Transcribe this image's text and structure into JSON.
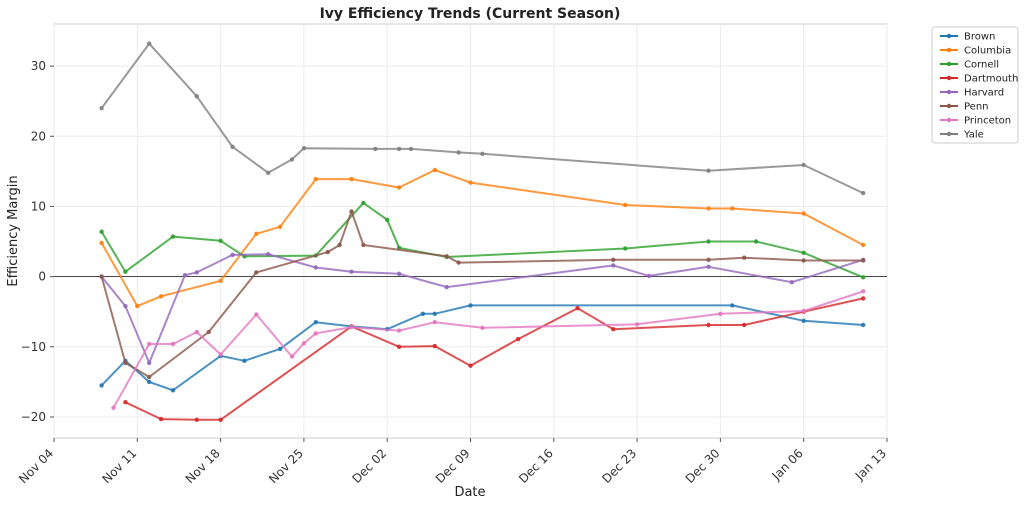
{
  "chart_data": {
    "type": "line",
    "title": "Ivy Efficiency Trends (Current Season)",
    "xlabel": "Date",
    "ylabel": "Efficiency Margin",
    "x_axis": "date",
    "xlim": [
      "2024-11-04",
      "2025-01-13"
    ],
    "ylim": [
      -23,
      36
    ],
    "x_ticks": [
      "2024-11-04",
      "2024-11-11",
      "2024-11-18",
      "2024-11-25",
      "2024-12-02",
      "2024-12-09",
      "2024-12-16",
      "2024-12-23",
      "2024-12-30",
      "2025-01-06",
      "2025-01-13"
    ],
    "x_tick_labels": [
      "Nov 04",
      "Nov 11",
      "Nov 18",
      "Nov 25",
      "Dec 02",
      "Dec 09",
      "Dec 16",
      "Dec 23",
      "Dec 30",
      "Jan 06",
      "Jan 13"
    ],
    "y_ticks": [
      -20,
      -10,
      0,
      10,
      20,
      30
    ],
    "y_tick_labels": [
      "−20",
      "−10",
      "0",
      "10",
      "20",
      "30"
    ],
    "grid": true,
    "zero_line": true,
    "legend_position": "outside top-right",
    "series": [
      {
        "name": "Brown",
        "color": "#1f77b4",
        "points": [
          [
            "2024-11-08",
            -15.5
          ],
          [
            "2024-11-10",
            -12
          ],
          [
            "2024-11-12",
            -15
          ],
          [
            "2024-11-14",
            -16.2
          ],
          [
            "2024-11-18",
            -11.3
          ],
          [
            "2024-11-20",
            -12
          ],
          [
            "2024-11-23",
            -10.3
          ],
          [
            "2024-11-26",
            -6.5
          ],
          [
            "2024-11-29",
            -7.1
          ],
          [
            "2024-12-02",
            -7.5
          ],
          [
            "2024-12-05",
            -5.3
          ],
          [
            "2024-12-06",
            -5.3
          ],
          [
            "2024-12-09",
            -4.1
          ],
          [
            "2024-12-31",
            -4.1
          ],
          [
            "2025-01-06",
            -6.3
          ],
          [
            "2025-01-11",
            -6.9
          ]
        ]
      },
      {
        "name": "Columbia",
        "color": "#ff7f0e",
        "points": [
          [
            "2024-11-08",
            4.8
          ],
          [
            "2024-11-11",
            -4.2
          ],
          [
            "2024-11-13",
            -2.8
          ],
          [
            "2024-11-18",
            -0.6
          ],
          [
            "2024-11-21",
            6.1
          ],
          [
            "2024-11-23",
            7.1
          ],
          [
            "2024-11-26",
            13.9
          ],
          [
            "2024-11-29",
            13.9
          ],
          [
            "2024-12-03",
            12.7
          ],
          [
            "2024-12-06",
            15.2
          ],
          [
            "2024-12-09",
            13.4
          ],
          [
            "2024-12-22",
            10.2
          ],
          [
            "2024-12-29",
            9.7
          ],
          [
            "2024-12-31",
            9.7
          ],
          [
            "2025-01-06",
            9.0
          ],
          [
            "2025-01-11",
            4.5
          ]
        ]
      },
      {
        "name": "Cornell",
        "color": "#2ca02c",
        "points": [
          [
            "2024-11-08",
            6.4
          ],
          [
            "2024-11-10",
            0.7
          ],
          [
            "2024-11-14",
            5.7
          ],
          [
            "2024-11-18",
            5.1
          ],
          [
            "2024-11-20",
            2.9
          ],
          [
            "2024-11-26",
            3.0
          ],
          [
            "2024-11-30",
            10.5
          ],
          [
            "2024-12-02",
            8.1
          ],
          [
            "2024-12-03",
            4.1
          ],
          [
            "2024-12-07",
            2.8
          ],
          [
            "2024-12-22",
            4.0
          ],
          [
            "2024-12-29",
            5.0
          ],
          [
            "2025-01-02",
            5.0
          ],
          [
            "2025-01-06",
            3.4
          ],
          [
            "2025-01-11",
            -0.1
          ]
        ]
      },
      {
        "name": "Dartmouth",
        "color": "#d62728",
        "points": [
          [
            "2024-11-10",
            -17.9
          ],
          [
            "2024-11-13",
            -20.3
          ],
          [
            "2024-11-16",
            -20.4
          ],
          [
            "2024-11-18",
            -20.4
          ],
          [
            "2024-11-29",
            -7.1
          ],
          [
            "2024-12-03",
            -10.0
          ],
          [
            "2024-12-06",
            -9.9
          ],
          [
            "2024-12-09",
            -12.7
          ],
          [
            "2024-12-13",
            -8.9
          ],
          [
            "2024-12-18",
            -4.5
          ],
          [
            "2024-12-21",
            -7.5
          ],
          [
            "2024-12-29",
            -6.9
          ],
          [
            "2025-01-01",
            -6.9
          ],
          [
            "2025-01-06",
            -5.0
          ],
          [
            "2025-01-11",
            -3.1
          ]
        ]
      },
      {
        "name": "Harvard",
        "color": "#9467bd",
        "points": [
          [
            "2024-11-08",
            0.0
          ],
          [
            "2024-11-10",
            -4.2
          ],
          [
            "2024-11-12",
            -12.3
          ],
          [
            "2024-11-15",
            0.2
          ],
          [
            "2024-11-16",
            0.6
          ],
          [
            "2024-11-19",
            3.1
          ],
          [
            "2024-11-22",
            3.2
          ],
          [
            "2024-11-26",
            1.3
          ],
          [
            "2024-11-29",
            0.7
          ],
          [
            "2024-12-03",
            0.4
          ],
          [
            "2024-12-07",
            -1.5
          ],
          [
            "2024-12-21",
            1.6
          ],
          [
            "2024-12-24",
            0.1
          ],
          [
            "2024-12-29",
            1.4
          ],
          [
            "2025-01-05",
            -0.8
          ],
          [
            "2025-01-11",
            2.4
          ]
        ]
      },
      {
        "name": "Penn",
        "color": "#8c564b",
        "points": [
          [
            "2024-11-08",
            0.0
          ],
          [
            "2024-11-10",
            -12.3
          ],
          [
            "2024-11-12",
            -14.3
          ],
          [
            "2024-11-17",
            -7.9
          ],
          [
            "2024-11-21",
            0.6
          ],
          [
            "2024-11-27",
            3.5
          ],
          [
            "2024-11-28",
            4.5
          ],
          [
            "2024-11-29",
            9.3
          ],
          [
            "2024-11-30",
            4.5
          ],
          [
            "2024-12-07",
            2.9
          ],
          [
            "2024-12-08",
            2.0
          ],
          [
            "2024-12-21",
            2.4
          ],
          [
            "2024-12-29",
            2.4
          ],
          [
            "2025-01-01",
            2.7
          ],
          [
            "2025-01-06",
            2.3
          ],
          [
            "2025-01-11",
            2.3
          ]
        ]
      },
      {
        "name": "Princeton",
        "color": "#e377c2",
        "points": [
          [
            "2024-11-09",
            -18.7
          ],
          [
            "2024-11-12",
            -9.6
          ],
          [
            "2024-11-14",
            -9.6
          ],
          [
            "2024-11-16",
            -7.9
          ],
          [
            "2024-11-18",
            -11.1
          ],
          [
            "2024-11-21",
            -5.4
          ],
          [
            "2024-11-24",
            -11.4
          ],
          [
            "2024-11-25",
            -9.5
          ],
          [
            "2024-11-26",
            -8.1
          ],
          [
            "2024-11-29",
            -7.2
          ],
          [
            "2024-12-03",
            -7.7
          ],
          [
            "2024-12-06",
            -6.5
          ],
          [
            "2024-12-10",
            -7.3
          ],
          [
            "2024-12-23",
            -6.8
          ],
          [
            "2024-12-30",
            -5.3
          ],
          [
            "2025-01-06",
            -4.9
          ],
          [
            "2025-01-11",
            -2.1
          ]
        ]
      },
      {
        "name": "Yale",
        "color": "#7f7f7f",
        "points": [
          [
            "2024-11-08",
            24.0
          ],
          [
            "2024-11-12",
            33.2
          ],
          [
            "2024-11-16",
            25.7
          ],
          [
            "2024-11-19",
            18.5
          ],
          [
            "2024-11-22",
            14.8
          ],
          [
            "2024-11-24",
            16.7
          ],
          [
            "2024-11-25",
            18.3
          ],
          [
            "2024-12-01",
            18.2
          ],
          [
            "2024-12-03",
            18.2
          ],
          [
            "2024-12-04",
            18.2
          ],
          [
            "2024-12-08",
            17.7
          ],
          [
            "2024-12-10",
            17.5
          ],
          [
            "2024-12-29",
            15.1
          ],
          [
            "2025-01-06",
            15.9
          ],
          [
            "2025-01-11",
            11.9
          ]
        ]
      }
    ]
  }
}
